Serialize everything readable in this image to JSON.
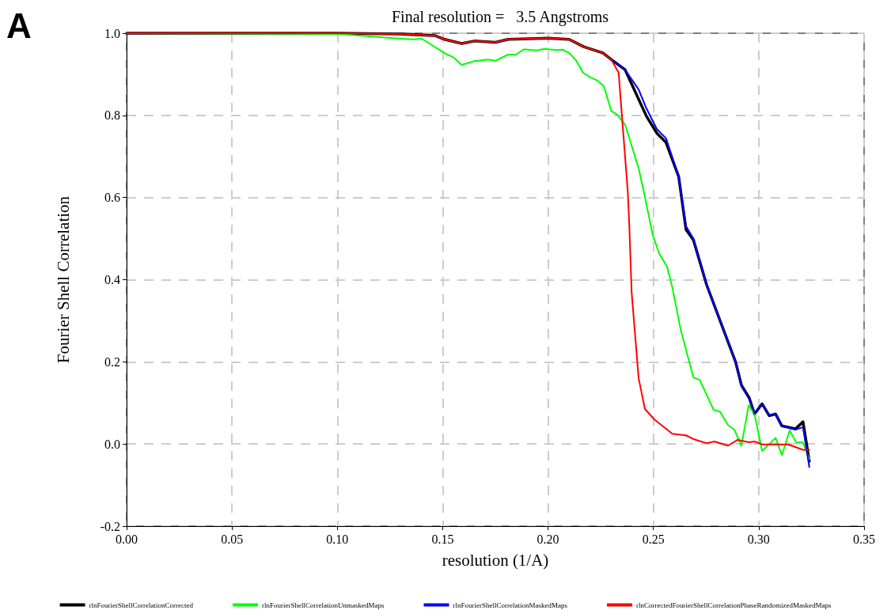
{
  "chart_data": {
    "type": "line",
    "title": "Final resolution =   3.5 Angstroms",
    "xlabel": "resolution (1/A)",
    "ylabel": "Fourier Shell Correlation",
    "annotations": [
      "A"
    ],
    "xlim": [
      0,
      0.35
    ],
    "xticks": [
      {
        "value": 0,
        "label": "0.00"
      },
      0.05,
      {
        "value": 0.1,
        "label": "0.10"
      },
      0.15,
      {
        "value": 0.2,
        "label": "0.20"
      },
      0.25,
      {
        "value": 0.3,
        "label": "0.30"
      },
      0.35
    ],
    "ylim": [
      -0.2,
      1
    ],
    "yticks": [
      -0.2,
      {
        "value": 0,
        "label": "0.0"
      },
      0.2,
      0.4,
      0.6,
      0.8,
      {
        "value": 1,
        "label": "1.0"
      }
    ],
    "grid": true,
    "legend": "bottom",
    "marker": "none",
    "line_style": "solid",
    "series": [
      {
        "name": "rlnFourierShellCorrelationCorrected",
        "color": "#000000",
        "x": [
          0,
          0.1,
          0.13,
          0.1465,
          0.151,
          0.159,
          0.165,
          0.175,
          0.181,
          0.2,
          0.21,
          0.217,
          0.226,
          0.23,
          0.2366,
          0.24,
          0.2467,
          0.2516,
          0.256,
          0.262,
          0.2655,
          0.269,
          0.2753,
          0.289,
          0.2918,
          0.2955,
          0.298,
          0.3016,
          0.305,
          0.308,
          0.311,
          0.3174,
          0.321,
          0.324
        ],
        "values": [
          1,
          1,
          0.998,
          0.994,
          0.985,
          0.975,
          0.981,
          0.978,
          0.985,
          0.988,
          0.985,
          0.967,
          0.952,
          0.936,
          0.911,
          0.873,
          0.798,
          0.757,
          0.734,
          0.651,
          0.522,
          0.497,
          0.387,
          0.2,
          0.143,
          0.112,
          0.073,
          0.098,
          0.069,
          0.073,
          0.044,
          0.037,
          0.054,
          -0.042
        ]
      },
      {
        "name": "rlnFourierShellCorrelationUnmaskedMaps",
        "color": "#00ff00",
        "x": [
          0,
          0.101,
          0.1266,
          0.136,
          0.14,
          0.1514,
          0.155,
          0.159,
          0.165,
          0.1716,
          0.175,
          0.181,
          0.1847,
          0.1885,
          0.1945,
          0.1983,
          0.204,
          0.207,
          0.21,
          0.2134,
          0.2166,
          0.2204,
          0.2234,
          0.2265,
          0.23,
          0.2328,
          0.2366,
          0.243,
          0.2453,
          0.2497,
          0.2527,
          0.2565,
          0.259,
          0.263,
          0.269,
          0.272,
          0.2786,
          0.2816,
          0.2854,
          0.2884,
          0.2918,
          0.2952,
          0.298,
          0.3016,
          0.308,
          0.311,
          0.3147,
          0.3177,
          0.321,
          0.324
        ],
        "values": [
          1,
          0.998,
          0.988,
          0.985,
          0.987,
          0.95,
          0.942,
          0.923,
          0.932,
          0.936,
          0.933,
          0.948,
          0.948,
          0.961,
          0.958,
          0.962,
          0.959,
          0.96,
          0.952,
          0.933,
          0.904,
          0.892,
          0.885,
          0.871,
          0.811,
          0.802,
          0.777,
          0.671,
          0.618,
          0.509,
          0.464,
          0.432,
          0.381,
          0.277,
          0.162,
          0.156,
          0.083,
          0.079,
          0.046,
          0.035,
          -0.004,
          0.094,
          0.073,
          -0.017,
          0.015,
          -0.027,
          0.033,
          0.004,
          0.004,
          -0.037
        ]
      },
      {
        "name": "rlnFourierShellCorrelationMaskedMaps",
        "color": "#0000ff",
        "x": [
          0.23,
          0.2366,
          0.243,
          0.2467,
          0.2516,
          0.256,
          0.262,
          0.2655,
          0.269,
          0.2753,
          0.289,
          0.2918,
          0.2955,
          0.298,
          0.3016,
          0.305,
          0.308,
          0.311,
          0.3174,
          0.321,
          0.324
        ],
        "values": [
          0.936,
          0.911,
          0.863,
          0.817,
          0.767,
          0.744,
          0.651,
          0.53,
          0.5,
          0.387,
          0.2,
          0.14,
          0.11,
          0.075,
          0.098,
          0.07,
          0.073,
          0.044,
          0.035,
          0.041,
          -0.056
        ]
      },
      {
        "name": "rlnCorrectedFourierShellCorrelationPhaseRandomizedMaskedMaps",
        "color": "#ff0000",
        "x": [
          0,
          0.1,
          0.13,
          0.1465,
          0.151,
          0.159,
          0.165,
          0.175,
          0.181,
          0.2,
          0.21,
          0.217,
          0.226,
          0.23,
          0.2335,
          0.2378,
          0.2385,
          0.2397,
          0.243,
          0.246,
          0.2504,
          0.259,
          0.2655,
          0.269,
          0.2753,
          0.279,
          0.2854,
          0.29,
          0.2955,
          0.298,
          0.3016,
          0.314,
          0.321,
          0.324
        ],
        "values": [
          1,
          1,
          0.998,
          0.994,
          0.985,
          0.975,
          0.981,
          0.978,
          0.985,
          0.988,
          0.985,
          0.967,
          0.952,
          0.936,
          0.904,
          0.618,
          0.541,
          0.368,
          0.16,
          0.085,
          0.06,
          0.025,
          0.021,
          0.012,
          0.002,
          0.006,
          -0.004,
          0.01,
          0.004,
          0.006,
          -0.001,
          -0.001,
          -0.014,
          -0.014
        ]
      }
    ]
  }
}
